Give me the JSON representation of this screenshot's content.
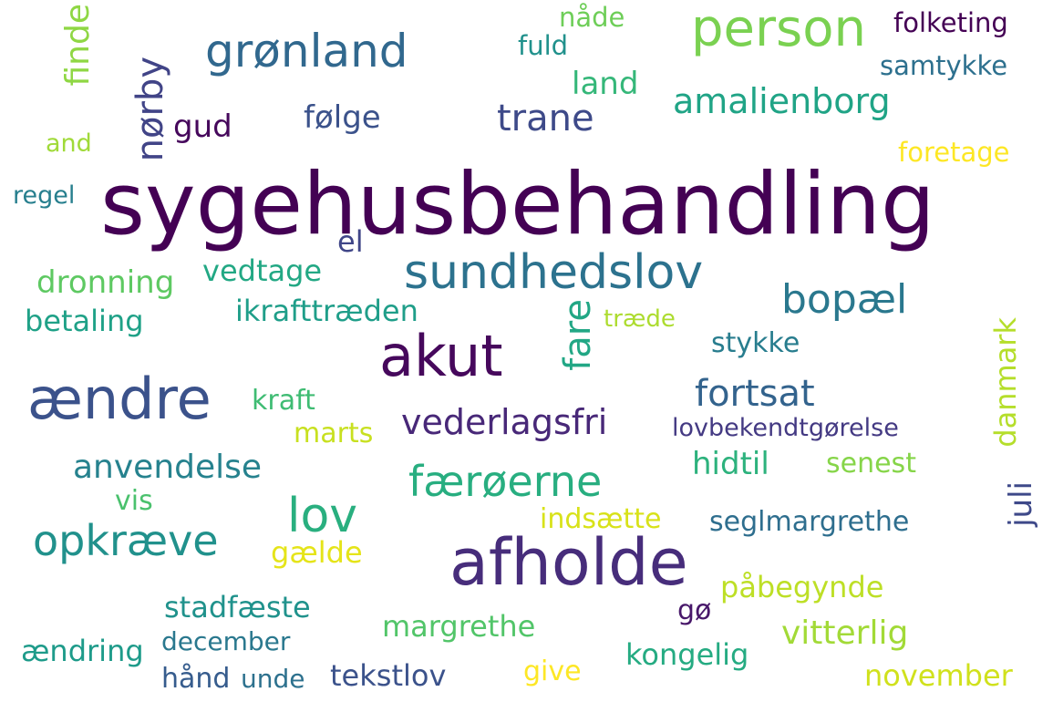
{
  "words": [
    {
      "text": "sygehusbehandling",
      "color": "#440154"
    },
    {
      "text": "afholde",
      "color": "#472d7b"
    },
    {
      "text": "ændre",
      "color": "#3b528b"
    },
    {
      "text": "akut",
      "color": "#46085c"
    },
    {
      "text": "person",
      "color": "#7ad151"
    },
    {
      "text": "sundhedslov",
      "color": "#2c728e"
    },
    {
      "text": "grønland",
      "color": "#31688e"
    },
    {
      "text": "lov",
      "color": "#29af7f"
    },
    {
      "text": "opkræve",
      "color": "#21918c"
    },
    {
      "text": "færøerne",
      "color": "#28ae80"
    },
    {
      "text": "bopæl",
      "color": "#2a788e"
    },
    {
      "text": "fortsat",
      "color": "#33638d"
    },
    {
      "text": "trane",
      "color": "#3e4a89"
    },
    {
      "text": "amalienborg",
      "color": "#20a486"
    },
    {
      "text": "vederlagsfri",
      "color": "#482878"
    },
    {
      "text": "fare",
      "color": "#22a785"
    },
    {
      "text": "nørby",
      "color": "#414487"
    },
    {
      "text": "finde",
      "color": "#8fd744"
    },
    {
      "text": "anvendelse",
      "color": "#26828e"
    },
    {
      "text": "folketing",
      "color": "#440154"
    },
    {
      "text": "samtykke",
      "color": "#2d708e"
    },
    {
      "text": "gud",
      "color": "#46085c"
    },
    {
      "text": "følge",
      "color": "#3b528b"
    },
    {
      "text": "land",
      "color": "#35b779"
    },
    {
      "text": "fuld",
      "color": "#21918c"
    },
    {
      "text": "nåde",
      "color": "#6ece58"
    },
    {
      "text": "foretage",
      "color": "#fde725"
    },
    {
      "text": "and",
      "color": "#a0da39"
    },
    {
      "text": "regel",
      "color": "#277f8e"
    },
    {
      "text": "el",
      "color": "#404688"
    },
    {
      "text": "dronning",
      "color": "#5ec962"
    },
    {
      "text": "vedtage",
      "color": "#22a884"
    },
    {
      "text": "betaling",
      "color": "#1fa187"
    },
    {
      "text": "ikrafttræden",
      "color": "#1f9e89"
    },
    {
      "text": "træde",
      "color": "#addc30"
    },
    {
      "text": "stykke",
      "color": "#287d8e"
    },
    {
      "text": "kraft",
      "color": "#3fbc73"
    },
    {
      "text": "marts",
      "color": "#c8e020"
    },
    {
      "text": "lovbekendtgørelse",
      "color": "#443a83"
    },
    {
      "text": "danmark",
      "color": "#b5de2b"
    },
    {
      "text": "hidtil",
      "color": "#2db27d"
    },
    {
      "text": "senest",
      "color": "#86d549"
    },
    {
      "text": "vis",
      "color": "#4ac16d"
    },
    {
      "text": "indsætte",
      "color": "#d8e219"
    },
    {
      "text": "seglmargrethe",
      "color": "#2e6e8e"
    },
    {
      "text": "juli",
      "color": "#3e4989"
    },
    {
      "text": "gælde",
      "color": "#e5e419"
    },
    {
      "text": "stadfæste",
      "color": "#20928c"
    },
    {
      "text": "påbegynde",
      "color": "#bddf26"
    },
    {
      "text": "gø",
      "color": "#48186a"
    },
    {
      "text": "margrethe",
      "color": "#52c569"
    },
    {
      "text": "vitterlig",
      "color": "#a2da37"
    },
    {
      "text": "ændring",
      "color": "#1e9b8a"
    },
    {
      "text": "december",
      "color": "#2a788e"
    },
    {
      "text": "kongelig",
      "color": "#25ab82"
    },
    {
      "text": "hånd",
      "color": "#365c8d"
    },
    {
      "text": "unde",
      "color": "#2d718e"
    },
    {
      "text": "tekstlov",
      "color": "#3b528b"
    },
    {
      "text": "give",
      "color": "#fde725"
    },
    {
      "text": "november",
      "color": "#d0e11c"
    }
  ]
}
